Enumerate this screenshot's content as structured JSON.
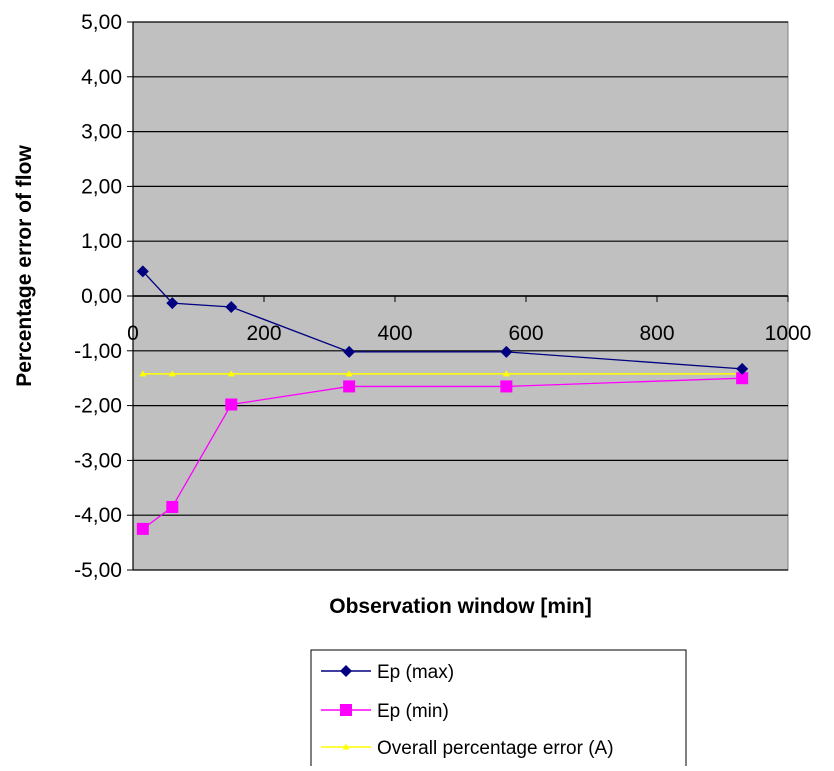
{
  "chart_data": {
    "type": "line",
    "title": "",
    "xlabel": "Observation window [min]",
    "ylabel": "Percentage error of flow",
    "xlim": [
      0,
      1000
    ],
    "ylim": [
      -5,
      5
    ],
    "x_ticks": [
      0,
      200,
      400,
      600,
      800,
      1000
    ],
    "x_tick_labels": [
      "0",
      "200",
      "400",
      "600",
      "800",
      "1000"
    ],
    "y_ticks": [
      5,
      4,
      3,
      2,
      1,
      0,
      -1,
      -2,
      -3,
      -4,
      -5
    ],
    "y_tick_labels": [
      "5,00",
      "4,00",
      "3,00",
      "2,00",
      "1,00",
      "0,00",
      "-1,00",
      "-2,00",
      "-3,00",
      "-4,00",
      "-5,00"
    ],
    "grid": "horizontal",
    "plot_background": "#c0c0c0",
    "legend_position": "bottom",
    "series": [
      {
        "name": "Ep (max)",
        "color": "#000080",
        "marker": "diamond",
        "x": [
          15,
          60,
          150,
          330,
          570,
          930
        ],
        "y": [
          0.45,
          -0.13,
          -0.2,
          -1.02,
          -1.02,
          -1.33
        ]
      },
      {
        "name": "Ep (min)",
        "color": "#ff00ff",
        "marker": "square",
        "x": [
          15,
          60,
          150,
          330,
          570,
          930
        ],
        "y": [
          -4.25,
          -3.85,
          -1.98,
          -1.65,
          -1.65,
          -1.5
        ]
      },
      {
        "name": "Overall percentage error (A)",
        "color": "#ffff00",
        "marker": "triangle",
        "x": [
          15,
          60,
          150,
          330,
          570,
          930
        ],
        "y": [
          -1.42,
          -1.42,
          -1.42,
          -1.42,
          -1.42,
          -1.42
        ]
      }
    ]
  }
}
